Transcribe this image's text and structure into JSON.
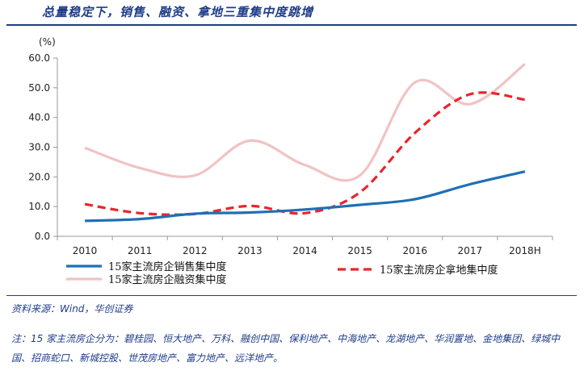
{
  "title": "总量稳定下，销售、融资、拿地三重集中度跳增",
  "source": "资料来源：Wind，华创证券",
  "note": "注：15 家主流房企分为：碧桂园、恒大地产、万科、融创中国、保利地产、中海地产、龙湖地产、华润置地、金地集团、绿城中国、招商蛇口、新城控股、世茂房地产、富力地产、远洋地产。",
  "chart_data": {
    "type": "line",
    "ylabel": "(%)",
    "ylim": [
      0,
      60
    ],
    "yticks": [
      "0.0",
      "10.0",
      "20.0",
      "30.0",
      "40.0",
      "50.0",
      "60.0"
    ],
    "categories": [
      "2010",
      "2011",
      "2012",
      "2013",
      "2014",
      "2015",
      "2016",
      "2017",
      "2018H"
    ],
    "series": [
      {
        "name": "15家主流房企销售集中度",
        "color": "#1f6fb5",
        "dash": "solid",
        "values": [
          5.2,
          5.8,
          7.6,
          8.0,
          9.0,
          10.6,
          12.5,
          17.5,
          21.8
        ]
      },
      {
        "name": "15家主流房企拿地集中度",
        "color": "#e8262b",
        "dash": "dashed",
        "values": [
          10.8,
          7.8,
          7.5,
          10.2,
          7.8,
          14.8,
          34.8,
          47.8,
          46.0
        ]
      },
      {
        "name": "15家主流房企融资集中度",
        "color": "#f0c3c3",
        "dash": "solid",
        "values": [
          29.8,
          23.0,
          20.5,
          32.2,
          24.0,
          20.5,
          51.8,
          44.5,
          58.0
        ]
      }
    ],
    "legend_position": "bottom",
    "grid": false
  }
}
